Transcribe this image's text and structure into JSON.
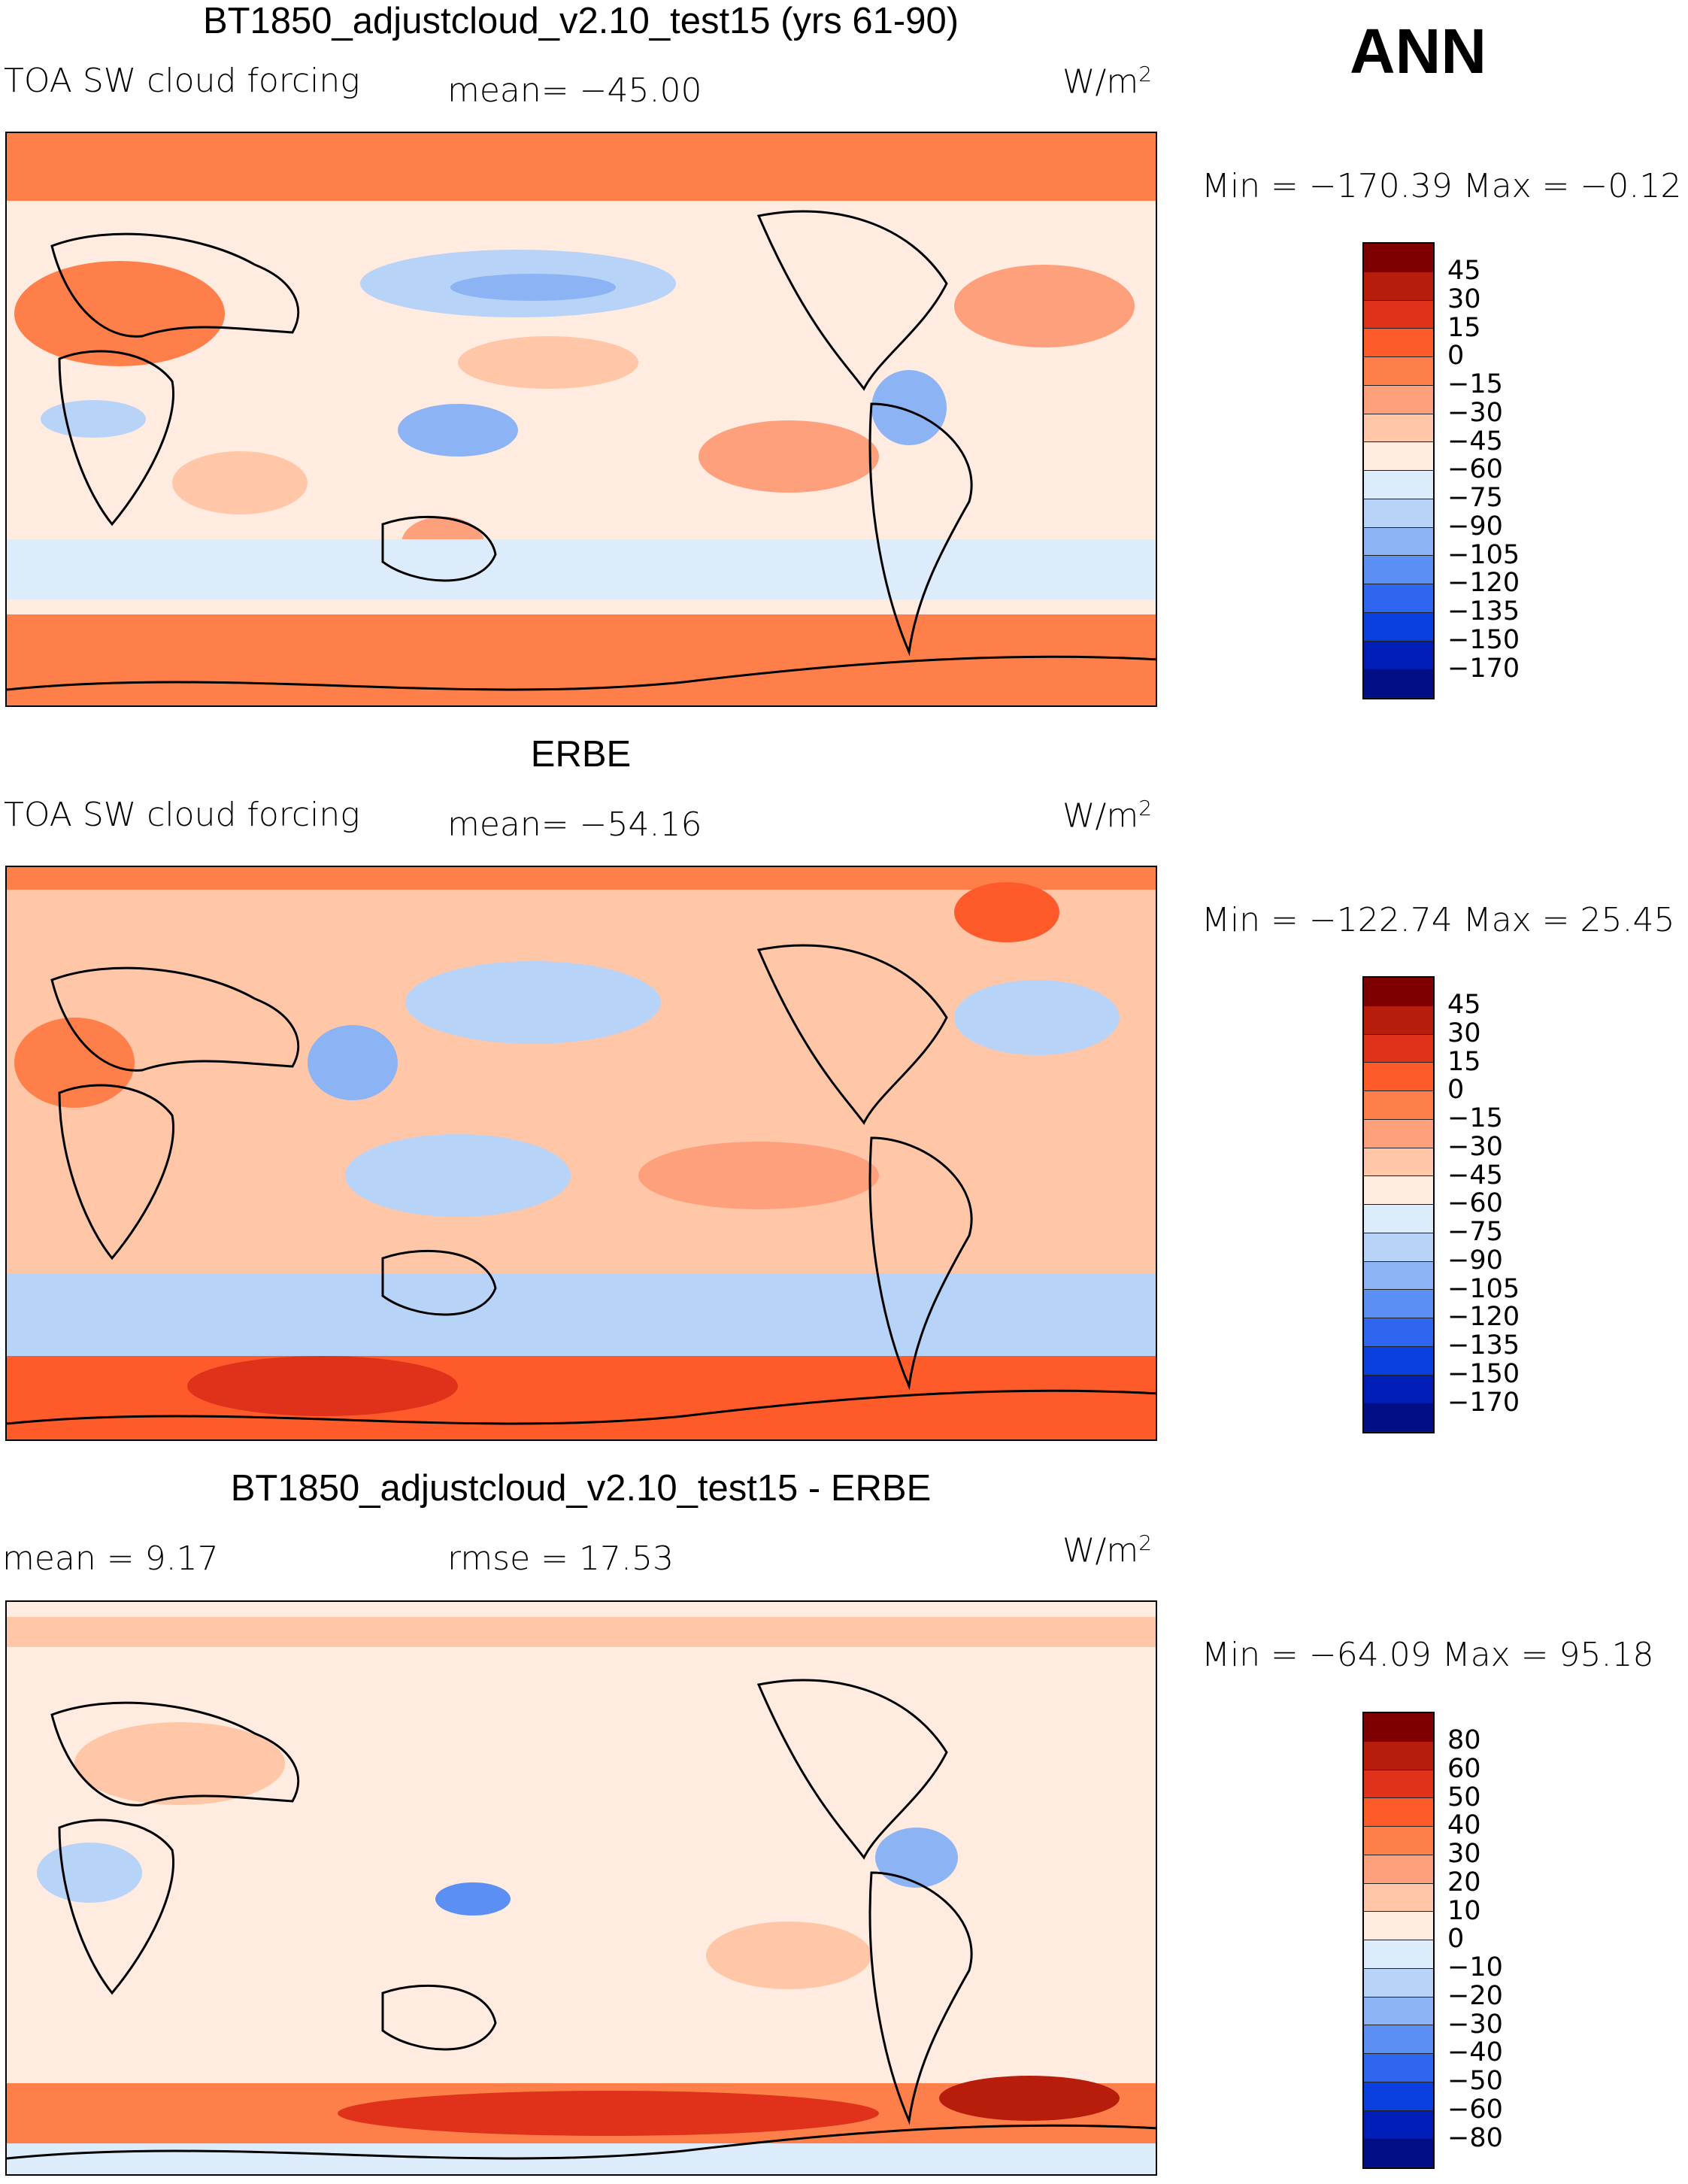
{
  "annual_label": "ANN",
  "panels": [
    {
      "title": "BT1850_adjustcloud_v2.10_test15 (yrs 61-90)",
      "variable": "TOA SW cloud forcing",
      "stat_left": "mean= −45.00",
      "units": "W/m",
      "units_sup": "2",
      "minmax": "Min = −170.39  Max =   −0.12",
      "colorbar": [
        "45",
        "30",
        "15",
        "0",
        "−15",
        "−30",
        "−45",
        "−60",
        "−75",
        "−90",
        "−105",
        "−120",
        "−135",
        "−150",
        "−170"
      ]
    },
    {
      "title": "ERBE",
      "variable": "TOA SW cloud forcing",
      "stat_left": "mean= −54.16",
      "units": "W/m",
      "units_sup": "2",
      "minmax": "Min = −122.74  Max =   25.45",
      "colorbar": [
        "45",
        "30",
        "15",
        "0",
        "−15",
        "−30",
        "−45",
        "−60",
        "−75",
        "−90",
        "−105",
        "−120",
        "−135",
        "−150",
        "−170"
      ]
    },
    {
      "title": "BT1850_adjustcloud_v2.10_test15 - ERBE",
      "stat_mean": "mean =    9.17",
      "stat_rmse": "rmse =   17.53",
      "units": "W/m",
      "units_sup": "2",
      "minmax": "Min = −64.09  Max =   95.18",
      "colorbar": [
        "80",
        "60",
        "50",
        "40",
        "30",
        "20",
        "10",
        "0",
        "−10",
        "−20",
        "−30",
        "−40",
        "−50",
        "−60",
        "−80"
      ]
    }
  ],
  "colors": {
    "forcing_scale": [
      "#7f0000",
      "#b81d0c",
      "#e0321a",
      "#ff5a2a",
      "#ff7f4a",
      "#ffa07c",
      "#ffc6a8",
      "#ffebe0",
      "#dcecfb",
      "#b7d3f7",
      "#8cb4f5",
      "#5b8ff4",
      "#2f66f0",
      "#0a3fe0",
      "#001fb8",
      "#000f85"
    ],
    "diff_scale": [
      "#7f0000",
      "#b81d0c",
      "#e0321a",
      "#ff5a2a",
      "#ff7f4a",
      "#ffa07c",
      "#ffc6a8",
      "#ffebe0",
      "#dcecfb",
      "#b7d3f7",
      "#8cb4f5",
      "#5b8ff4",
      "#2f66f0",
      "#0a3fe0",
      "#001fb8",
      "#000f85"
    ]
  }
}
